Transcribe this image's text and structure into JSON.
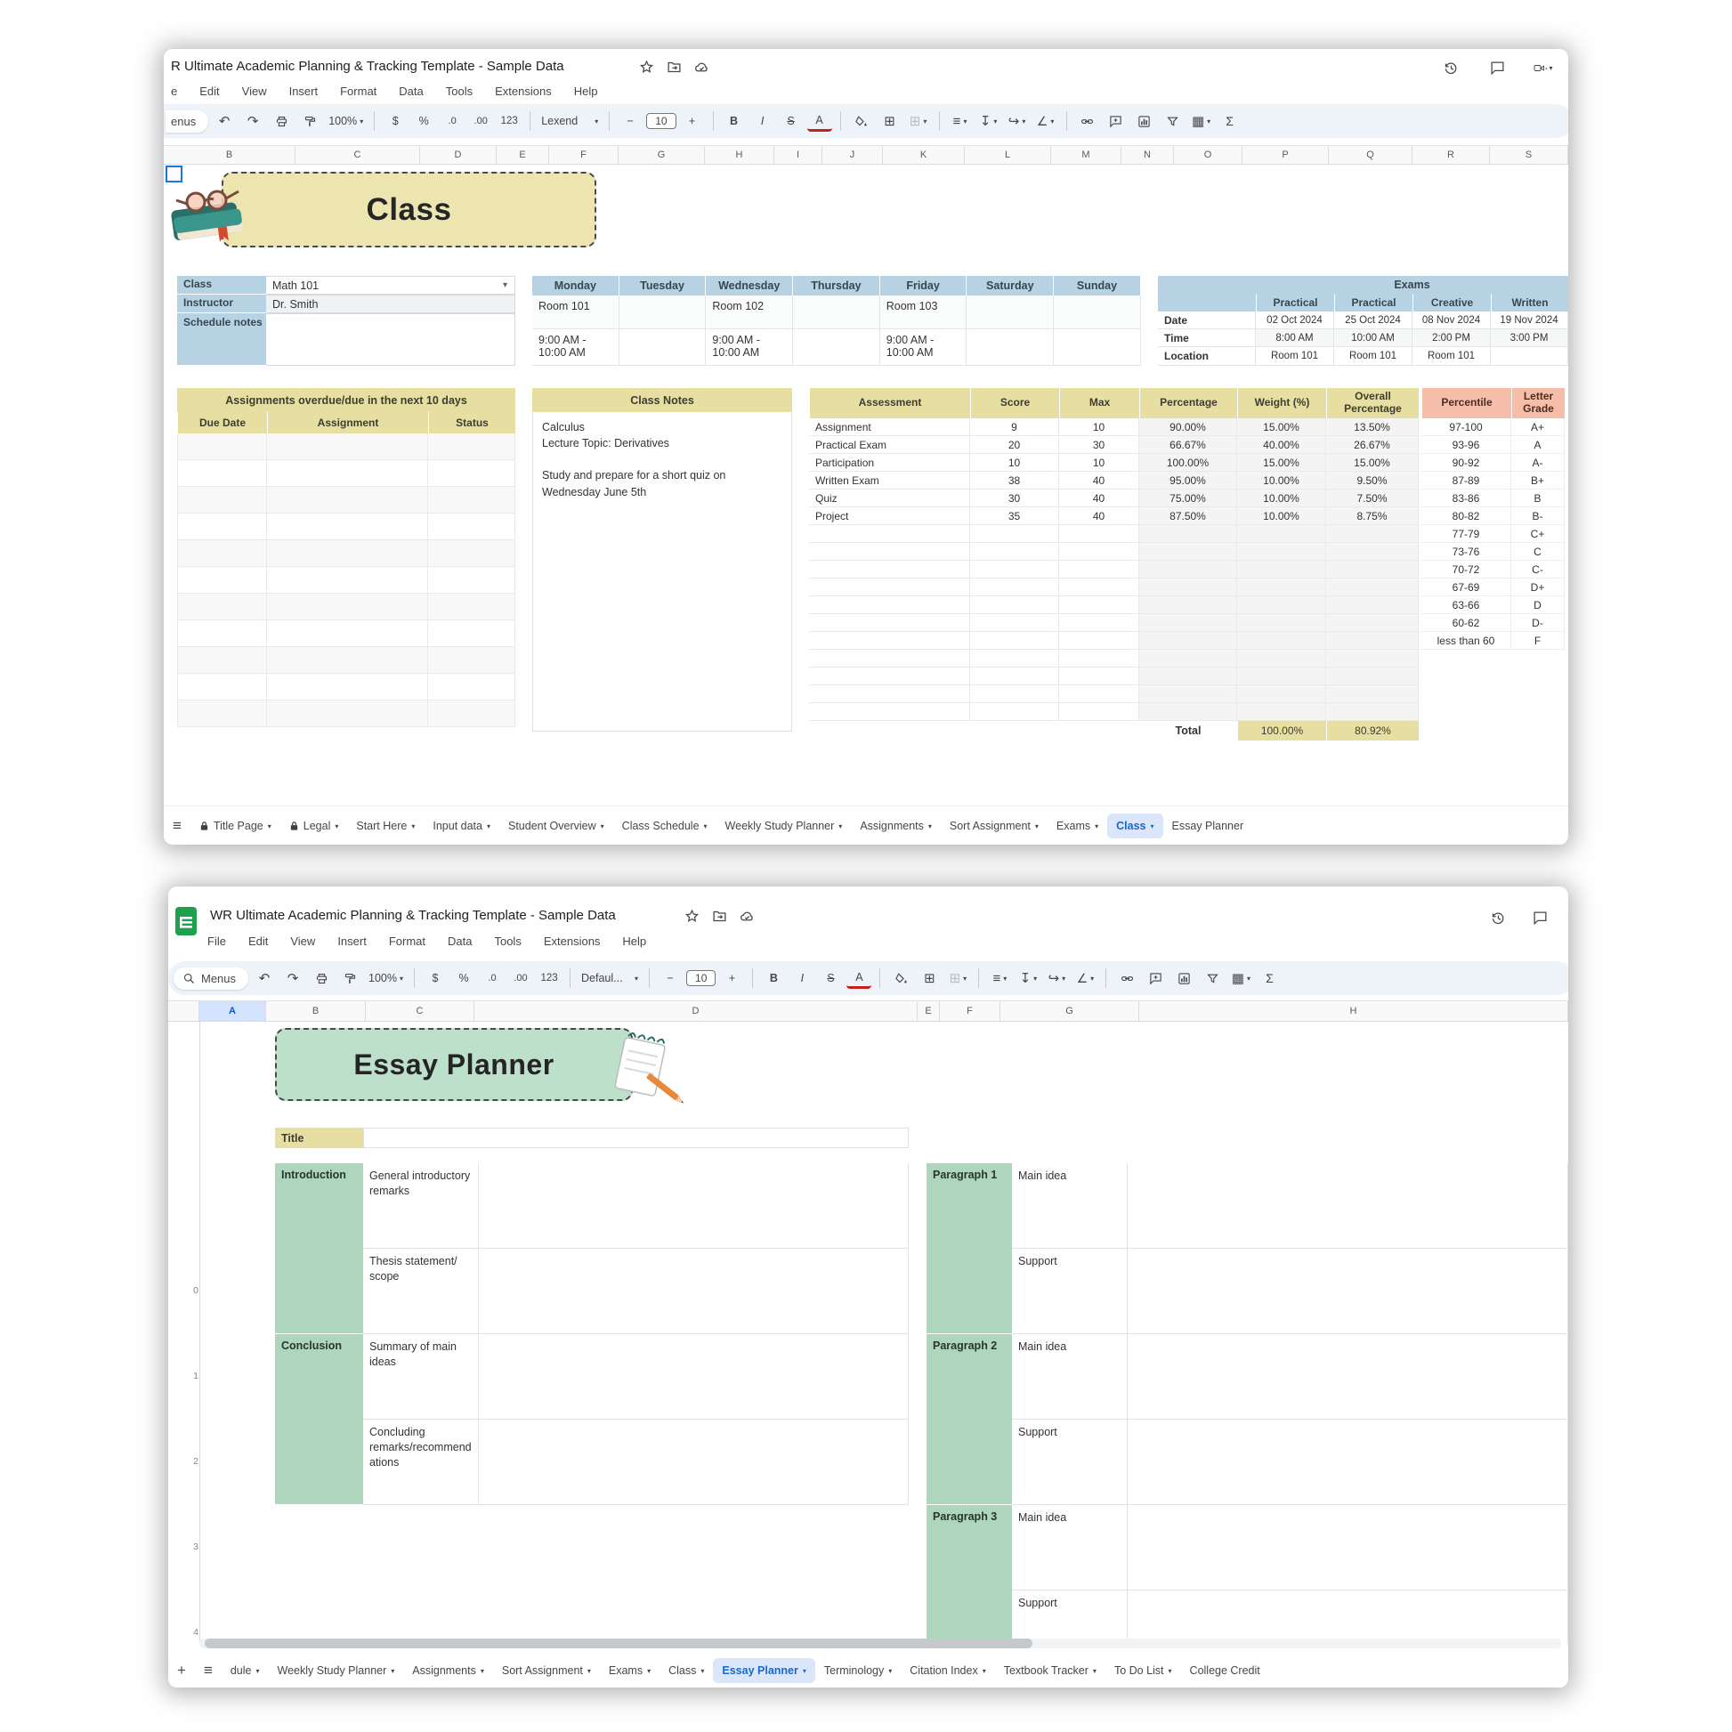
{
  "top": {
    "title": "R Ultimate Academic Planning & Tracking Template - Sample Data",
    "menu": [
      "e",
      "Edit",
      "View",
      "Insert",
      "Format",
      "Data",
      "Tools",
      "Extensions",
      "Help"
    ],
    "toolbar": {
      "menus_label": "enus",
      "zoom": "100%",
      "currency": "$",
      "percent": "%",
      "dec0": ".0",
      "dec00": ".00",
      "numfmt": "123",
      "font": "Lexend",
      "font_size": "10",
      "minus": "−",
      "plus": "+",
      "bold": "B",
      "italic": "I",
      "strike": "S",
      "color": "A",
      "borders": "⊞",
      "merge": "⊞",
      "halign": "≡",
      "valign": "↧",
      "wrap": "↪",
      "rotate": "∠",
      "views": "▦",
      "sigma": "Σ",
      "undo": "↶",
      "redo": "↷"
    },
    "columns": [
      "B",
      "C",
      "D",
      "E",
      "F",
      "G",
      "H",
      "I",
      "J",
      "K",
      "L",
      "M",
      "N",
      "O",
      "P",
      "Q",
      "R",
      "S"
    ],
    "banner": "Class",
    "class_info": [
      {
        "label": "Class",
        "value": "Math 101",
        "dropdown": true
      },
      {
        "label": "Instructor",
        "value": "Dr. Smith"
      },
      {
        "label": "Schedule notes",
        "value": ""
      }
    ],
    "schedule": {
      "days": [
        "Monday",
        "Tuesday",
        "Wednesday",
        "Thursday",
        "Friday",
        "Saturday",
        "Sunday"
      ],
      "rooms": [
        "Room 101",
        "",
        "Room 102",
        "",
        "Room 103",
        "",
        ""
      ],
      "times": [
        "9:00 AM - 10:00 AM",
        "",
        "9:00 AM - 10:00 AM",
        "",
        "9:00 AM - 10:00 AM",
        "",
        ""
      ]
    },
    "exams": {
      "title": "Exams",
      "types": [
        "Practical",
        "Practical",
        "Creative",
        "Written"
      ],
      "rows": [
        {
          "label": "Date",
          "values": [
            "02 Oct 2024",
            "25 Oct 2024",
            "08 Nov 2024",
            "19 Nov 2024"
          ]
        },
        {
          "label": "Time",
          "values": [
            "8:00 AM",
            "10:00 AM",
            "2:00 PM",
            "3:00 PM"
          ]
        },
        {
          "label": "Location",
          "values": [
            "Room 101",
            "Room 101",
            "Room 101",
            ""
          ]
        }
      ]
    },
    "assignments": {
      "title": "Assignments overdue/due in the next 10 days",
      "headers": [
        "Due Date",
        "Assignment",
        "Status"
      ],
      "empty_rows": 11
    },
    "class_notes": {
      "title": "Class Notes",
      "text": "Calculus\nLecture Topic: Derivatives\n\nStudy and prepare for a short quiz on\nWednesday June 5th"
    },
    "assessment": {
      "headers": [
        "Assessment",
        "Score",
        "Max",
        "Percentage",
        "Weight (%)",
        "Overall Percentage"
      ],
      "rows": [
        [
          "Assignment",
          "9",
          "10",
          "90.00%",
          "15.00%",
          "13.50%"
        ],
        [
          "Practical Exam",
          "20",
          "30",
          "66.67%",
          "40.00%",
          "26.67%"
        ],
        [
          "Participation",
          "10",
          "10",
          "100.00%",
          "15.00%",
          "15.00%"
        ],
        [
          "Written Exam",
          "38",
          "40",
          "95.00%",
          "10.00%",
          "9.50%"
        ],
        [
          "Quiz",
          "30",
          "40",
          "75.00%",
          "10.00%",
          "7.50%"
        ],
        [
          "Project",
          "35",
          "40",
          "87.50%",
          "10.00%",
          "8.75%"
        ]
      ],
      "empty_rows": 11,
      "total_label": "Total",
      "total_weight": "100.00%",
      "total_overall": "80.92%"
    },
    "grades": {
      "headers": [
        "Percentile",
        "Letter Grade"
      ],
      "rows": [
        [
          "97-100",
          "A+"
        ],
        [
          "93-96",
          "A"
        ],
        [
          "90-92",
          "A-"
        ],
        [
          "87-89",
          "B+"
        ],
        [
          "83-86",
          "B"
        ],
        [
          "80-82",
          "B-"
        ],
        [
          "77-79",
          "C+"
        ],
        [
          "73-76",
          "C"
        ],
        [
          "70-72",
          "C-"
        ],
        [
          "67-69",
          "D+"
        ],
        [
          "63-66",
          "D"
        ],
        [
          "60-62",
          "D-"
        ],
        [
          "less than 60",
          "F"
        ]
      ]
    },
    "tabs": [
      {
        "label": "Title Page",
        "locked": true,
        "dd": true
      },
      {
        "label": "Legal",
        "locked": true,
        "dd": true
      },
      {
        "label": "Start Here",
        "dd": true
      },
      {
        "label": "Input data",
        "dd": true
      },
      {
        "label": "Student Overview",
        "dd": true
      },
      {
        "label": "Class Schedule",
        "dd": true
      },
      {
        "label": "Weekly Study Planner",
        "dd": true
      },
      {
        "label": "Assignments",
        "dd": true
      },
      {
        "label": "Sort Assignment",
        "dd": true
      },
      {
        "label": "Exams",
        "dd": true
      },
      {
        "label": "Class",
        "active": true,
        "dd": true
      },
      {
        "label": "Essay Planner"
      }
    ]
  },
  "bottom": {
    "title": "WR Ultimate Academic Planning & Tracking Template - Sample Data",
    "menu": [
      "File",
      "Edit",
      "View",
      "Insert",
      "Format",
      "Data",
      "Tools",
      "Extensions",
      "Help"
    ],
    "toolbar": {
      "menus_label": "Menus",
      "zoom": "100%",
      "currency": "$",
      "percent": "%",
      "dec0": ".0",
      "dec00": ".00",
      "numfmt": "123",
      "font": "Defaul...",
      "font_size": "10",
      "minus": "−",
      "plus": "+",
      "bold": "B",
      "italic": "I",
      "strike": "S",
      "color": "A",
      "borders": "⊞",
      "merge": "⊞",
      "halign": "≡",
      "valign": "↧",
      "wrap": "↪",
      "rotate": "∠",
      "views": "▦",
      "sigma": "Σ",
      "undo": "↶",
      "redo": "↷"
    },
    "columns": [
      "",
      "A",
      "B",
      "C",
      "D",
      "E",
      "F",
      "G",
      "H"
    ],
    "row_numbers": [
      "0",
      "1",
      "2",
      "3",
      "4"
    ],
    "banner": "Essay Planner",
    "title_label": "Title",
    "left_sections": [
      {
        "label": "Introduction",
        "items": [
          "General introductory remarks",
          "Thesis statement/\nscope"
        ]
      },
      {
        "label": "Conclusion",
        "items": [
          "Summary of main ideas",
          "Concluding remarks/recommendations"
        ]
      }
    ],
    "right_sections": [
      {
        "label": "Paragraph 1",
        "items": [
          "Main idea",
          "Support"
        ]
      },
      {
        "label": "Paragraph 2",
        "items": [
          "Main idea",
          "Support"
        ]
      },
      {
        "label": "Paragraph 3",
        "items": [
          "Main idea",
          "Support"
        ]
      }
    ],
    "tabs": [
      {
        "label": "dule",
        "dd": true
      },
      {
        "label": "Weekly Study Planner",
        "dd": true
      },
      {
        "label": "Assignments",
        "dd": true
      },
      {
        "label": "Sort Assignment",
        "dd": true
      },
      {
        "label": "Exams",
        "dd": true
      },
      {
        "label": "Class",
        "dd": true
      },
      {
        "label": "Essay Planner",
        "active": true,
        "dd": true
      },
      {
        "label": "Terminology",
        "dd": true
      },
      {
        "label": "Citation Index",
        "dd": true
      },
      {
        "label": "Textbook Tracker",
        "dd": true
      },
      {
        "label": "To Do List",
        "dd": true
      },
      {
        "label": "College Credit"
      }
    ]
  },
  "colors": {
    "blue_header": "#b7d2e2",
    "yellow_header": "#e7dfa2",
    "yellow_banner": "#ece5b0",
    "salmon_header": "#f6bda8",
    "green_label": "#aed6bd",
    "green_banner": "#bce0ca",
    "active_tab_text": "#1967d2",
    "active_tab_bg": "#dbe6fb"
  }
}
